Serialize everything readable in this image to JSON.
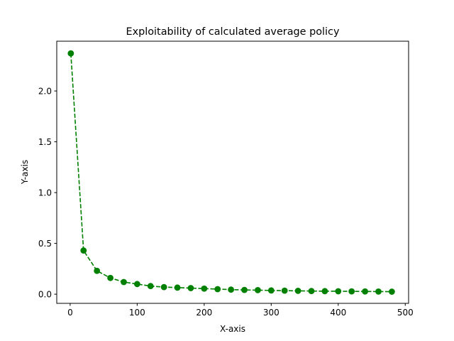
{
  "chart_data": {
    "type": "line",
    "title": "Exploitability of calculated average policy",
    "xlabel": "X-axis",
    "ylabel": "Y-axis",
    "xlim": [
      -20,
      505
    ],
    "ylim": [
      -0.09,
      2.49
    ],
    "xticks": [
      0,
      100,
      200,
      300,
      400,
      500
    ],
    "xtick_labels": [
      "0",
      "100",
      "200",
      "300",
      "400",
      "500"
    ],
    "yticks": [
      0.0,
      0.5,
      1.0,
      1.5,
      2.0
    ],
    "ytick_labels": [
      "0.0",
      "0.5",
      "1.0",
      "1.5",
      "2.0"
    ],
    "grid": false,
    "series": [
      {
        "color": "#008000",
        "line_style": "dashed",
        "marker": "circle",
        "x": [
          1,
          20,
          40,
          60,
          80,
          100,
          120,
          140,
          160,
          180,
          200,
          220,
          240,
          260,
          280,
          300,
          320,
          340,
          360,
          380,
          400,
          420,
          440,
          460,
          480
        ],
        "y": [
          2.37,
          0.43,
          0.23,
          0.16,
          0.12,
          0.1,
          0.08,
          0.07,
          0.065,
          0.06,
          0.055,
          0.05,
          0.045,
          0.042,
          0.04,
          0.037,
          0.035,
          0.033,
          0.031,
          0.03,
          0.029,
          0.028,
          0.027,
          0.026,
          0.025
        ]
      }
    ]
  }
}
